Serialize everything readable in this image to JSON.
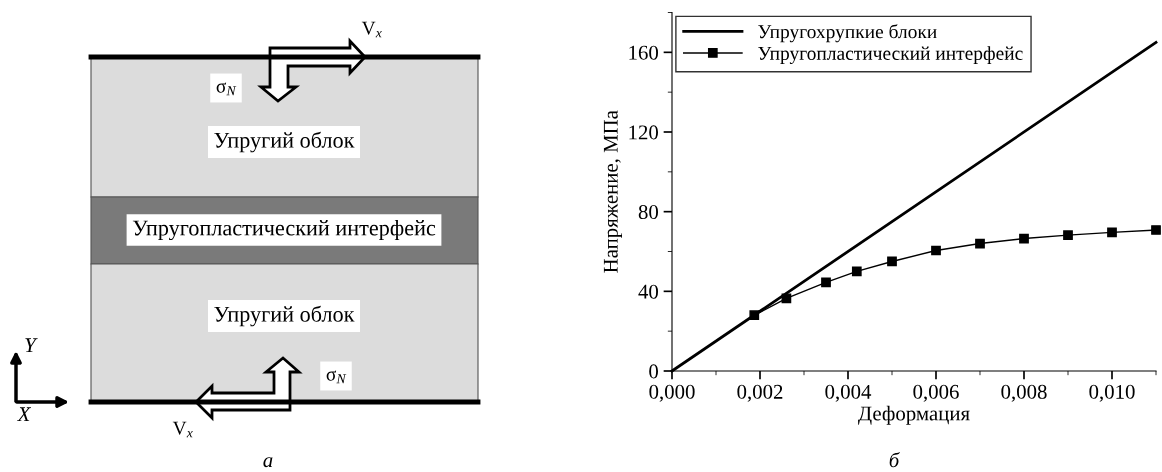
{
  "chart_data": [
    {
      "type": "other",
      "annotations": [
        "V$_{x}$",
        "σ$_{N}$",
        "Упругий облок",
        "Упругопластический интерфейс",
        "Упругий облок",
        "σ$_{N}$",
        "V$_{x}$",
        "Y",
        "X",
        "а"
      ]
    },
    {
      "type": "line",
      "xlabel": "Деформация",
      "ylabel": "Напряжение, МПа",
      "xlim": [
        0,
        0.011
      ],
      "ylim": [
        0,
        180
      ],
      "xticks": [
        {
          "value": 0,
          "label": "0,000"
        },
        {
          "value": 0.002,
          "label": "0,002"
        },
        {
          "value": 0.004,
          "label": "0,004"
        },
        {
          "value": 0.006,
          "label": "0,006"
        },
        {
          "value": 0.008,
          "label": "0,008"
        },
        {
          "value": 0.01,
          "label": "0,010"
        }
      ],
      "yticks": [
        0,
        40,
        80,
        120,
        160
      ],
      "grid": false,
      "legend": "top left",
      "series": [
        {
          "name": "Упругохрупкие блоки",
          "color": "#000000",
          "marker": "none",
          "x": [
            0,
            0.011
          ],
          "values": [
            0,
            165
          ]
        },
        {
          "name": "Упругопластический интерфейс",
          "color": "#000000",
          "marker": "square",
          "x": [
            0.00187,
            0.0026,
            0.0035,
            0.0042,
            0.005,
            0.006,
            0.007,
            0.008,
            0.009,
            0.01,
            0.011
          ],
          "values": [
            28,
            36.5,
            44.5,
            50,
            55,
            60.5,
            64,
            66.5,
            68.2,
            69.6,
            70.8
          ]
        }
      ],
      "annotations": [
        "б"
      ]
    }
  ]
}
